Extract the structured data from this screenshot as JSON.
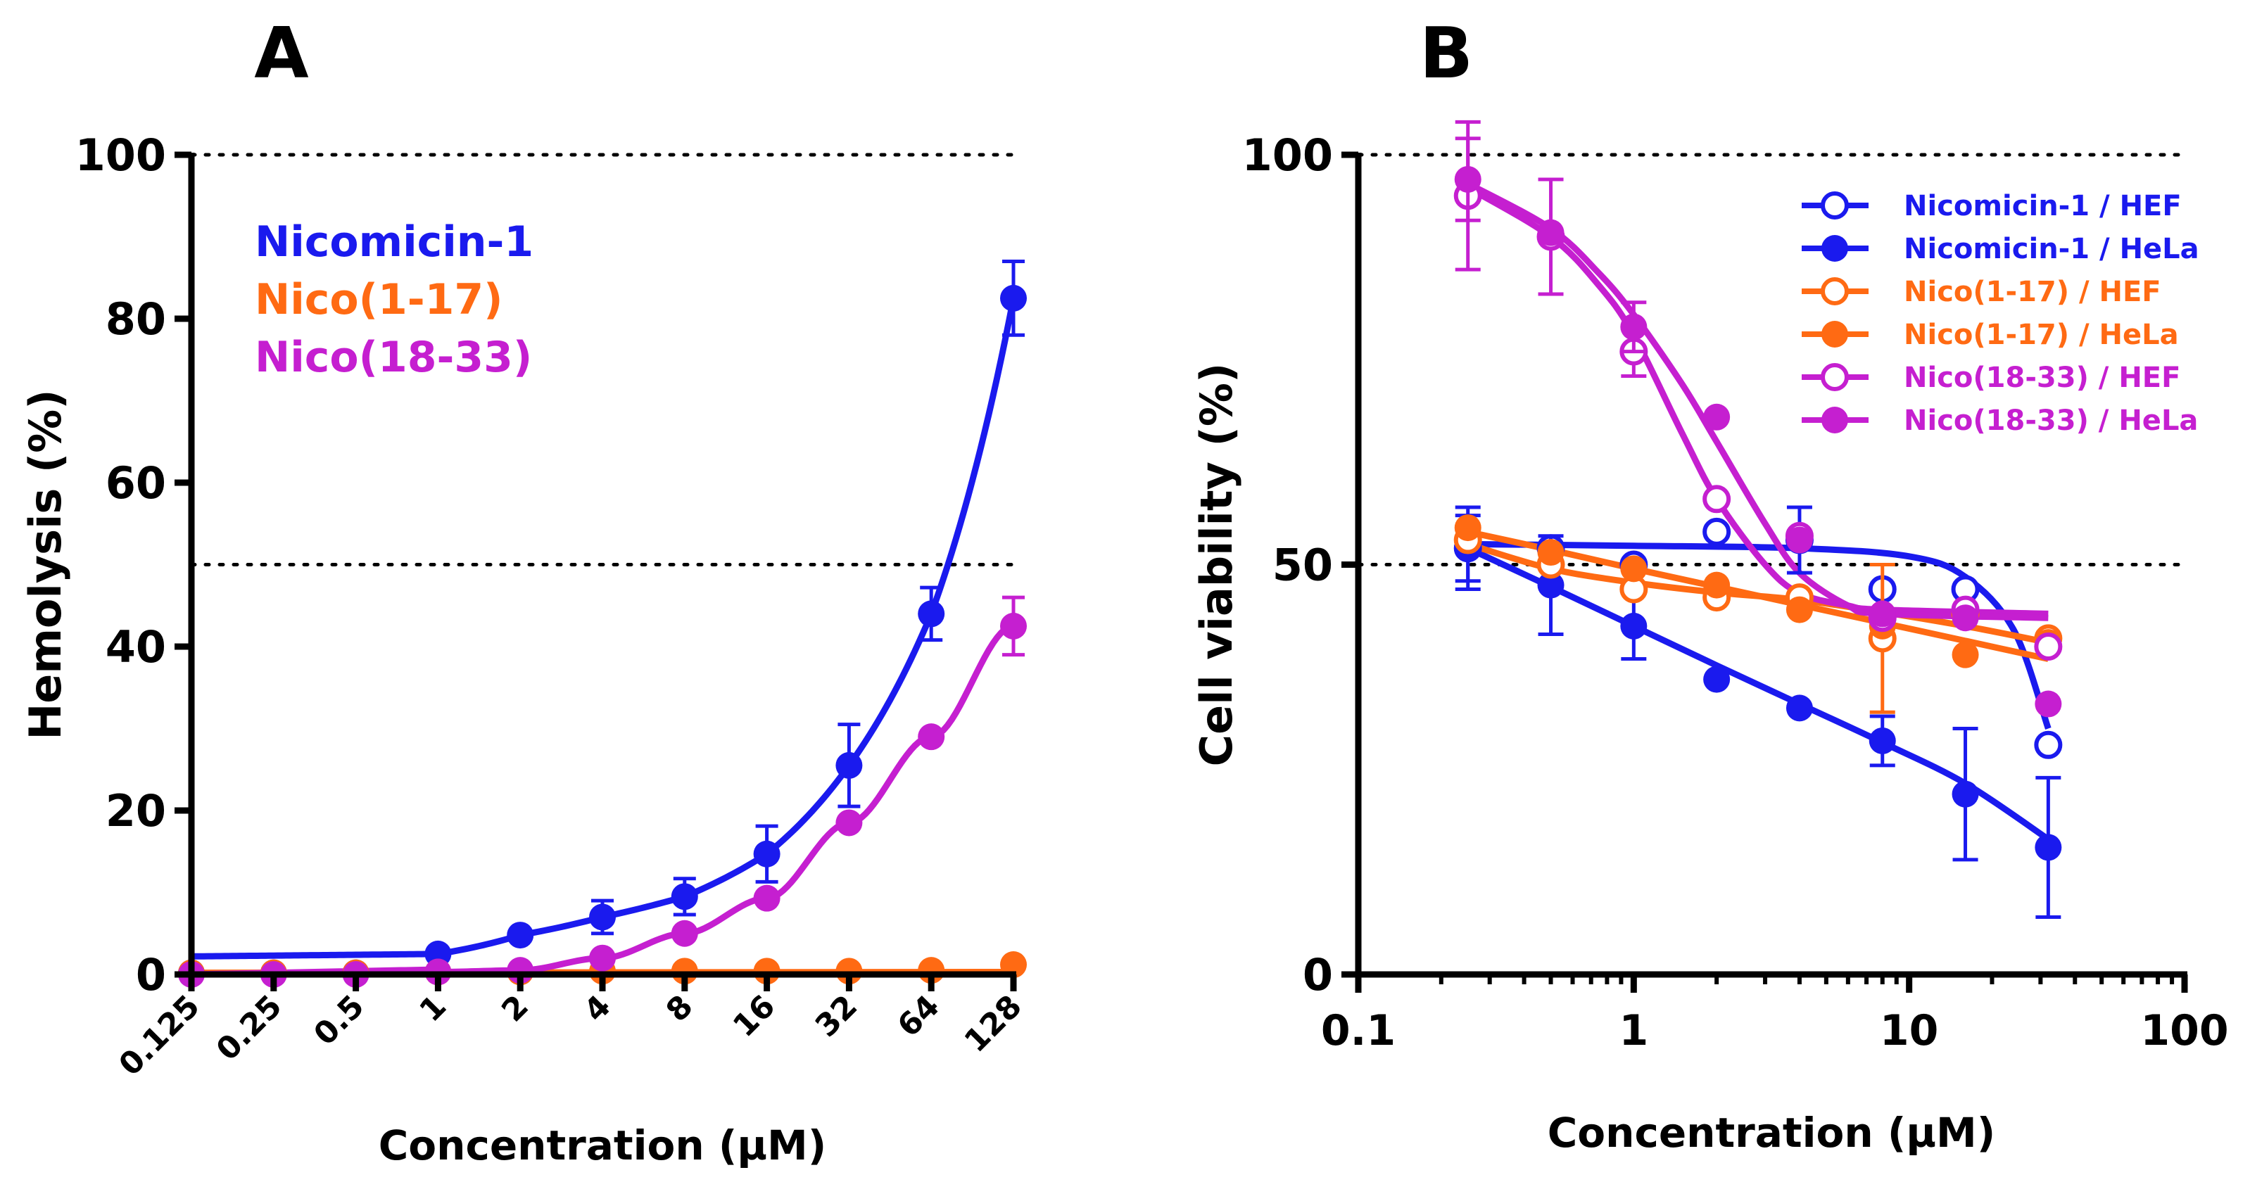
{
  "colors": {
    "nicomicin": "#1a1aee",
    "nico117": "#ff6a13",
    "nico1833": "#c51fd0",
    "axis": "#000000",
    "refline": "#000000"
  },
  "chart_data": [
    {
      "panel": "A",
      "type": "line",
      "title": "",
      "xlabel": "Concentration (µM)",
      "ylabel": "Hemolysis (%)",
      "xscale": "log2-categorical",
      "x": [
        0.125,
        0.25,
        0.5,
        1,
        2,
        4,
        8,
        16,
        32,
        64,
        128
      ],
      "x_tick_labels": [
        "0.125",
        "0.25",
        "0.5",
        "1",
        "2",
        "4",
        "8",
        "16",
        "32",
        "64",
        "128"
      ],
      "ylim": [
        0,
        100
      ],
      "y_ticks": [
        0,
        20,
        40,
        60,
        80,
        100
      ],
      "y_tick_labels": [
        "0",
        "20",
        "40",
        "60",
        "80",
        "100"
      ],
      "reference_lines": [
        50,
        100
      ],
      "legend_placement": "top-left",
      "series": [
        {
          "name": "Nicomicin-1",
          "color_key": "nicomicin",
          "marker": "filled",
          "values": [
            0.2,
            0.2,
            0.2,
            2.5,
            4.8,
            7.0,
            9.5,
            14.7,
            25.5,
            44.0,
            82.5
          ],
          "errors": [
            0,
            0,
            0,
            0,
            0,
            2,
            2.2,
            3.4,
            5,
            3.2,
            4.5
          ],
          "fit": "exponential"
        },
        {
          "name": "Nico(1-17)",
          "color_key": "nico117",
          "marker": "filled",
          "values": [
            0.2,
            0.2,
            0.2,
            0.3,
            0.3,
            0.4,
            0.4,
            0.4,
            0.4,
            0.5,
            1.2
          ],
          "errors": [
            0,
            0,
            0,
            0,
            0,
            0,
            0,
            0,
            0,
            0,
            0
          ],
          "fit": "flat"
        },
        {
          "name": "Nico(18-33)",
          "color_key": "nico1833",
          "marker": "filled",
          "values": [
            0,
            0,
            0,
            0.3,
            0.5,
            2.0,
            5.0,
            9.3,
            18.5,
            29.0,
            42.5
          ],
          "errors": [
            0,
            0,
            0,
            0,
            0,
            0,
            0,
            0,
            0,
            0,
            3.5
          ],
          "fit": "sigmoid"
        }
      ]
    },
    {
      "panel": "B",
      "type": "scatter",
      "title": "",
      "xlabel": "Concentration (µM)",
      "ylabel": "Cell viability (%)",
      "xscale": "log10",
      "xlim": [
        0.1,
        100
      ],
      "x_ticks": [
        0.1,
        1,
        10,
        100
      ],
      "x_tick_labels": [
        "0.1",
        "1",
        "10",
        "100"
      ],
      "ylim": [
        0,
        100
      ],
      "y_ticks": [
        0,
        50,
        100
      ],
      "y_tick_labels": [
        "0",
        "50",
        "100"
      ],
      "reference_lines": [
        50,
        100
      ],
      "legend_placement": "top-right",
      "x": [
        0.25,
        0.5,
        1,
        2,
        4,
        8,
        16,
        32
      ],
      "series": [
        {
          "name": "Nicomicin-1 / HEF",
          "color_key": "nicomicin",
          "marker": "open",
          "values": [
            52,
            52,
            50,
            54,
            53,
            47,
            47,
            28
          ],
          "errors": [
            5,
            0,
            0,
            0,
            4,
            0,
            0,
            0
          ],
          "fit": [
            [
              0.25,
              52.5
            ],
            [
              1,
              52.3
            ],
            [
              4,
              52.0
            ],
            [
              10,
              51.0
            ],
            [
              16,
              48.5
            ],
            [
              24,
              42.0
            ],
            [
              32,
              30.0
            ]
          ]
        },
        {
          "name": "Nicomicin-1 / HeLa",
          "color_key": "nicomicin",
          "marker": "filled",
          "values": [
            52,
            47.5,
            42.5,
            36,
            32.5,
            28.5,
            22,
            15.5
          ],
          "errors": [
            4,
            6,
            4,
            0,
            0,
            3,
            8,
            8.5
          ],
          "fit": [
            [
              0.25,
              52.0
            ],
            [
              0.5,
              47.3
            ],
            [
              1,
              42.5
            ],
            [
              2,
              37.7
            ],
            [
              4,
              33.0
            ],
            [
              8,
              28.3
            ],
            [
              16,
              23.3
            ],
            [
              32,
              16.5
            ]
          ]
        },
        {
          "name": "Nico(1-17) / HEF",
          "color_key": "nico117",
          "marker": "open",
          "values": [
            53,
            50,
            47,
            46,
            46,
            41,
            44,
            41
          ],
          "errors": [
            0,
            0,
            0,
            0,
            0,
            9,
            0,
            0
          ],
          "fit": [
            [
              0.25,
              52.5
            ],
            [
              0.5,
              49.5
            ],
            [
              1,
              47.8
            ],
            [
              2,
              46.6
            ],
            [
              4,
              45.7
            ],
            [
              8,
              44.2
            ],
            [
              16,
              42.5
            ],
            [
              32,
              40.5
            ]
          ]
        },
        {
          "name": "Nico(1-17) / HeLa",
          "color_key": "nico117",
          "marker": "filled",
          "values": [
            54.5,
            51.5,
            49.5,
            47.5,
            44.5,
            42.5,
            39,
            40.5
          ],
          "errors": [
            0,
            0,
            0,
            0,
            0,
            0,
            0,
            0
          ],
          "fit": [
            [
              0.25,
              54.0
            ],
            [
              0.5,
              51.8
            ],
            [
              1,
              49.5
            ],
            [
              2,
              47.3
            ],
            [
              4,
              45.1
            ],
            [
              8,
              42.9
            ],
            [
              16,
              40.7
            ],
            [
              32,
              38.5
            ]
          ]
        },
        {
          "name": "Nico(18-33) / HEF",
          "color_key": "nico1833",
          "marker": "open",
          "values": [
            95,
            90,
            76,
            58,
            53.5,
            43.5,
            44.5,
            40
          ],
          "errors": [
            9,
            7,
            3,
            0,
            0,
            0,
            0,
            0
          ],
          "fit": [
            [
              0.25,
              96.0
            ],
            [
              0.5,
              90.0
            ],
            [
              0.75,
              84.0
            ],
            [
              1,
              78.0
            ],
            [
              1.5,
              66.0
            ],
            [
              2,
              58.0
            ],
            [
              3,
              50.0
            ],
            [
              4,
              46.5
            ],
            [
              6,
              45.0
            ],
            [
              8,
              44.5
            ],
            [
              32,
              44.0
            ]
          ]
        },
        {
          "name": "Nico(18-33) / HeLa",
          "color_key": "nico1833",
          "marker": "filled",
          "values": [
            97,
            90.5,
            79,
            68,
            53,
            44,
            43.5,
            33
          ],
          "errors": [
            5,
            0,
            3,
            0,
            0,
            0,
            0,
            0
          ],
          "fit": [
            [
              0.25,
              96.5
            ],
            [
              0.5,
              91.0
            ],
            [
              0.75,
              85.5
            ],
            [
              1,
              80.5
            ],
            [
              1.5,
              72.0
            ],
            [
              2,
              65.0
            ],
            [
              3,
              55.0
            ],
            [
              4,
              49.0
            ],
            [
              6,
              45.0
            ],
            [
              8,
              44.0
            ],
            [
              32,
              43.5
            ]
          ]
        }
      ]
    }
  ]
}
